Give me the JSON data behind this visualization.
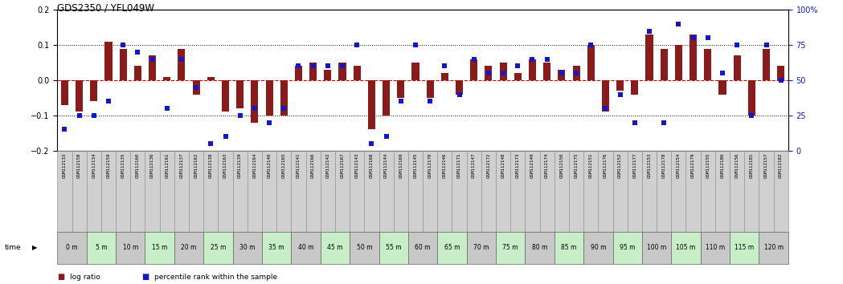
{
  "title": "GDS2350 / YFL049W",
  "gsm_labels": [
    "GSM112133",
    "GSM112158",
    "GSM112134",
    "GSM112159",
    "GSM112135",
    "GSM112160",
    "GSM112136",
    "GSM112161",
    "GSM112137",
    "GSM112162",
    "GSM112138",
    "GSM112163",
    "GSM112139",
    "GSM112164",
    "GSM112140",
    "GSM112165",
    "GSM112141",
    "GSM112166",
    "GSM112142",
    "GSM112167",
    "GSM112143",
    "GSM112168",
    "GSM112144",
    "GSM112169",
    "GSM112145",
    "GSM112170",
    "GSM112146",
    "GSM112171",
    "GSM112147",
    "GSM112172",
    "GSM112148",
    "GSM112173",
    "GSM112149",
    "GSM112174",
    "GSM112150",
    "GSM112175",
    "GSM112151",
    "GSM112176",
    "GSM112152",
    "GSM112177",
    "GSM112153",
    "GSM112178",
    "GSM112154",
    "GSM112179",
    "GSM112155",
    "GSM112180",
    "GSM112156",
    "GSM112181",
    "GSM112157",
    "GSM112182"
  ],
  "time_labels": [
    "0 m",
    "5 m",
    "10 m",
    "15 m",
    "20 m",
    "25 m",
    "30 m",
    "35 m",
    "40 m",
    "45 m",
    "50 m",
    "55 m",
    "60 m",
    "65 m",
    "70 m",
    "75 m",
    "80 m",
    "85 m",
    "90 m",
    "95 m",
    "100 m",
    "105 m",
    "110 m",
    "115 m",
    "120 m"
  ],
  "log_ratio": [
    -0.07,
    -0.09,
    -0.06,
    0.11,
    0.09,
    0.04,
    0.07,
    0.01,
    0.09,
    -0.04,
    0.01,
    -0.09,
    -0.08,
    -0.12,
    -0.1,
    -0.1,
    0.04,
    0.05,
    0.03,
    0.05,
    0.04,
    -0.14,
    -0.1,
    -0.05,
    0.05,
    -0.05,
    0.02,
    -0.04,
    0.06,
    0.04,
    0.05,
    0.02,
    0.06,
    0.05,
    0.03,
    0.04,
    0.1,
    -0.09,
    -0.03,
    -0.04,
    0.13,
    0.09,
    0.1,
    0.13,
    0.09,
    -0.04,
    0.07,
    -0.1,
    0.09,
    0.04
  ],
  "percentile": [
    15,
    25,
    25,
    35,
    75,
    70,
    65,
    30,
    65,
    45,
    5,
    10,
    25,
    30,
    20,
    30,
    60,
    60,
    60,
    60,
    75,
    5,
    10,
    35,
    75,
    35,
    60,
    40,
    65,
    55,
    55,
    60,
    65,
    65,
    55,
    55,
    75,
    30,
    40,
    20,
    85,
    20,
    90,
    80,
    80,
    55,
    75,
    25,
    75,
    50
  ],
  "bar_color": "#8B1A1A",
  "dot_color": "#1515CC",
  "ylim_left": [
    -0.2,
    0.2
  ],
  "ylim_right": [
    0,
    100
  ],
  "bg_color": "#FFFFFF",
  "zero_line_color": "#CC0000",
  "time_row_colors": [
    "#C8C8C8",
    "#C8EEC8"
  ],
  "gsm_row_color": "#D0D0D0",
  "right_axis_color": "#1515CC"
}
